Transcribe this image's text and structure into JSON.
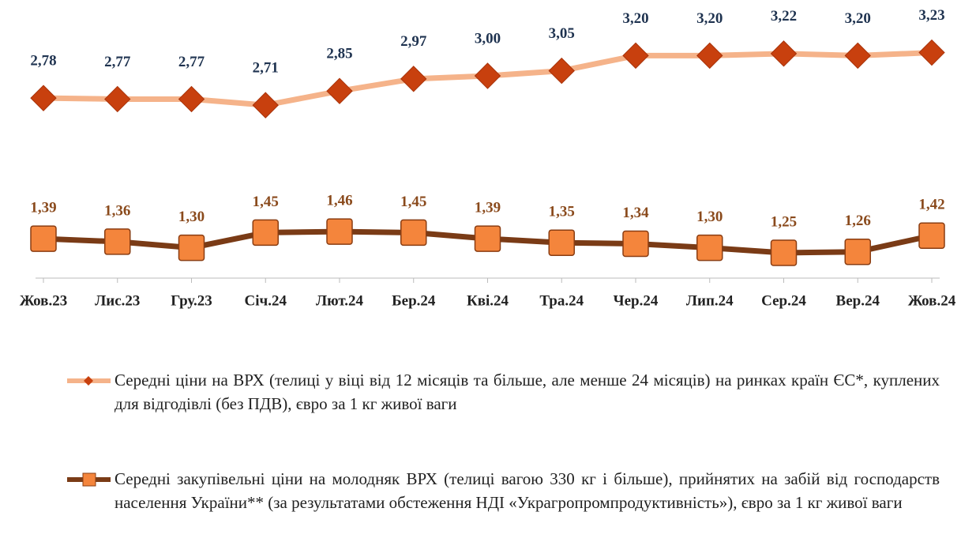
{
  "chart_data": {
    "type": "line",
    "categories": [
      "Жов.23",
      "Лис.23",
      "Гру.23",
      "Січ.24",
      "Лют.24",
      "Бер.24",
      "Кві.24",
      "Тра.24",
      "Чер.24",
      "Лип.24",
      "Сер.24",
      "Вер.24",
      "Жов.24"
    ],
    "ylim": [
      1,
      3.5
    ],
    "series": [
      {
        "name": "Середні ціни на ВРХ (телиці у віці від 12 місяців та більше, але менше 24 місяців) на ринках країн ЄС*, куплених для відгодівлі (без ПДВ), євро за 1 кг живої ваги",
        "color": "#f5b38a",
        "marker_color": "#c8400e",
        "marker": "diamond",
        "label_color": "#1f3350",
        "values": [
          2.78,
          2.77,
          2.77,
          2.71,
          2.85,
          2.97,
          3.0,
          3.05,
          3.2,
          3.2,
          3.22,
          3.2,
          3.23
        ],
        "value_labels": [
          "2,78",
          "2,77",
          "2,77",
          "2,71",
          "2,85",
          "2,97",
          "3,00",
          "3,05",
          "3,20",
          "3,20",
          "3,22",
          "3,20",
          "3,23"
        ]
      },
      {
        "name": "Середні закупівельні ціни на молодняк ВРХ (телиці вагою 330 кг і більше), прийнятих на забій від господарств населення України** (за результатами обстеження НДІ «Украгропромпродуктивність»), євро за 1 кг живої ваги",
        "color": "#7a3b16",
        "marker_color": "#f4853c",
        "marker": "square",
        "label_color": "#8a4a1c",
        "values": [
          1.39,
          1.36,
          1.3,
          1.45,
          1.46,
          1.45,
          1.39,
          1.35,
          1.34,
          1.3,
          1.25,
          1.26,
          1.42
        ],
        "value_labels": [
          "1,39",
          "1,36",
          "1,30",
          "1,45",
          "1,46",
          "1,45",
          "1,39",
          "1,35",
          "1,34",
          "1,30",
          "1,25",
          "1,26",
          "1,42"
        ]
      }
    ]
  }
}
